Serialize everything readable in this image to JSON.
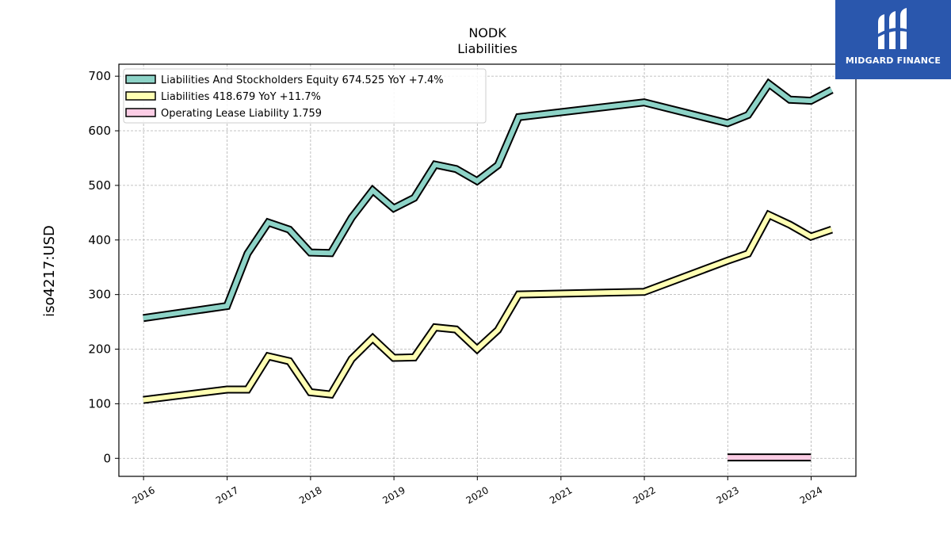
{
  "logo": {
    "text": "MIDGARD FINANCE",
    "background": "#2a57ad"
  },
  "chart_data": {
    "type": "line",
    "title": "NODK",
    "subtitle": "Liabilities",
    "ylabel": "iso4217:USD",
    "xlabel": "",
    "xlim": [
      "2015-09-15",
      "2024-07-15"
    ],
    "ylim": [
      -33,
      722
    ],
    "x_ticks": [
      "2016",
      "2017",
      "2018",
      "2019",
      "2020",
      "2021",
      "2022",
      "2023",
      "2024"
    ],
    "y_ticks": [
      0,
      100,
      200,
      300,
      400,
      500,
      600,
      700
    ],
    "grid": true,
    "legend_position": "top-left",
    "series": [
      {
        "name": "Liabilities And Stockholders Equity  674.525 YoY +7.4%",
        "color": "#8dd3c7",
        "points": [
          [
            "2015-12-31",
            257
          ],
          [
            "2016-12-31",
            279
          ],
          [
            "2017-03-31",
            375
          ],
          [
            "2017-06-30",
            432
          ],
          [
            "2017-09-30",
            419
          ],
          [
            "2017-12-31",
            377
          ],
          [
            "2018-03-31",
            376
          ],
          [
            "2018-06-30",
            441
          ],
          [
            "2018-09-30",
            491
          ],
          [
            "2018-12-31",
            458
          ],
          [
            "2019-03-31",
            477
          ],
          [
            "2019-06-30",
            538
          ],
          [
            "2019-09-30",
            530
          ],
          [
            "2019-12-31",
            508
          ],
          [
            "2020-03-31",
            537
          ],
          [
            "2020-06-30",
            625
          ],
          [
            "2021-12-31",
            652
          ],
          [
            "2022-12-31",
            614
          ],
          [
            "2023-03-31",
            629
          ],
          [
            "2023-06-30",
            686
          ],
          [
            "2023-09-30",
            657
          ],
          [
            "2023-12-31",
            655
          ],
          [
            "2024-03-31",
            675
          ]
        ]
      },
      {
        "name": "Liabilities  418.679 YoY +11.7%",
        "color": "#ffffb3",
        "points": [
          [
            "2015-12-31",
            107
          ],
          [
            "2016-12-31",
            126
          ],
          [
            "2017-03-31",
            126
          ],
          [
            "2017-06-30",
            187
          ],
          [
            "2017-09-30",
            178
          ],
          [
            "2017-12-31",
            121
          ],
          [
            "2018-03-31",
            117
          ],
          [
            "2018-06-30",
            182
          ],
          [
            "2018-09-30",
            220
          ],
          [
            "2018-12-31",
            184
          ],
          [
            "2019-03-31",
            185
          ],
          [
            "2019-06-30",
            240
          ],
          [
            "2019-09-30",
            236
          ],
          [
            "2019-12-31",
            200
          ],
          [
            "2020-03-31",
            235
          ],
          [
            "2020-06-30",
            300
          ],
          [
            "2021-12-31",
            305
          ],
          [
            "2022-12-31",
            362
          ],
          [
            "2023-03-31",
            375
          ],
          [
            "2023-06-30",
            446
          ],
          [
            "2023-09-30",
            428
          ],
          [
            "2023-12-31",
            406
          ],
          [
            "2024-03-31",
            419
          ]
        ]
      },
      {
        "name": "Operating Lease Liability  1.759",
        "color": "#fccde5",
        "points": [
          [
            "2022-12-31",
            1.76
          ],
          [
            "2023-12-31",
            1.76
          ]
        ]
      }
    ]
  }
}
